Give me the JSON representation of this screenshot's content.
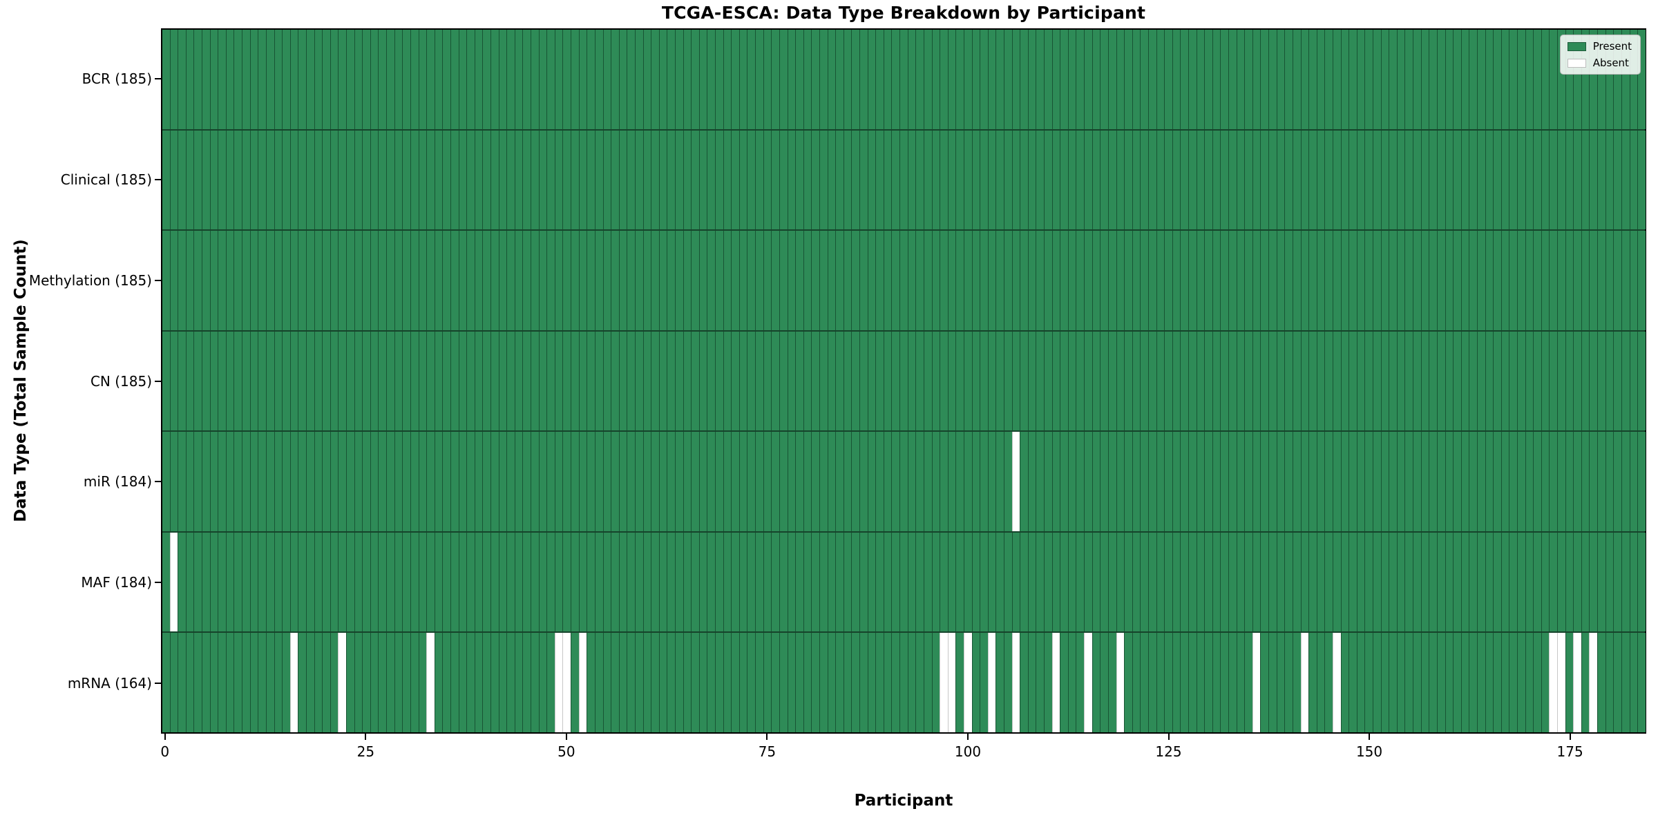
{
  "chart_data": {
    "type": "heatmap",
    "title": "TCGA-ESCA: Data Type Breakdown by Participant",
    "xlabel": "Participant",
    "ylabel": "Data Type (Total Sample Count)",
    "x_ticks": [
      0,
      25,
      50,
      75,
      100,
      125,
      150,
      175
    ],
    "x_range": [
      0,
      185
    ],
    "n_participants": 185,
    "grid": false,
    "legend": {
      "position": "upper right",
      "entries": [
        {
          "key": "present",
          "label": "Present",
          "color": "#2e8b57"
        },
        {
          "key": "absent",
          "label": "Absent",
          "color": "#ffffff"
        }
      ]
    },
    "rows": [
      {
        "data_type": "BCR",
        "label": "BCR (185)",
        "present_count": 185,
        "absent_participants": []
      },
      {
        "data_type": "Clinical",
        "label": "Clinical (185)",
        "present_count": 185,
        "absent_participants": []
      },
      {
        "data_type": "Methylation",
        "label": "Methylation (185)",
        "present_count": 185,
        "absent_participants": []
      },
      {
        "data_type": "CN",
        "label": "CN (185)",
        "present_count": 185,
        "absent_participants": []
      },
      {
        "data_type": "miR",
        "label": "miR (184)",
        "present_count": 184,
        "absent_participants": [
          106
        ]
      },
      {
        "data_type": "MAF",
        "label": "MAF (184)",
        "present_count": 184,
        "absent_participants": [
          1
        ]
      },
      {
        "data_type": "mRNA",
        "label": "mRNA (164)",
        "present_count": 164,
        "absent_participants": [
          16,
          22,
          33,
          49,
          50,
          52,
          97,
          98,
          100,
          103,
          106,
          111,
          115,
          119,
          136,
          142,
          146,
          173,
          174,
          176,
          178
        ]
      }
    ],
    "colors": {
      "present_fill": "#2e8b57",
      "absent_fill": "#ffffff",
      "cell_edge": "rgba(8,40,24,0.55)",
      "absent_edge": "#c7c7c7",
      "row_divider": "#16432b",
      "spine": "#000000",
      "figure_background": "#ffffff"
    }
  }
}
